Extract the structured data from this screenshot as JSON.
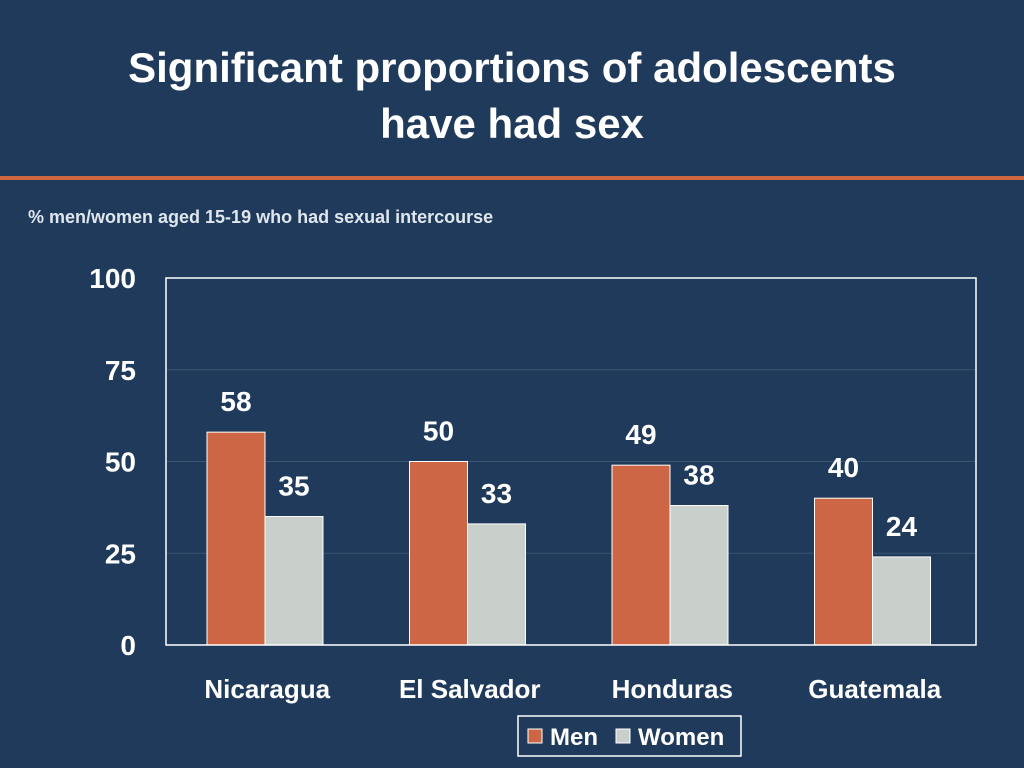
{
  "slide": {
    "title_line1": "Significant proportions of adolescents",
    "title_line2": "have had sex",
    "subtitle": "% men/women aged 15-19 who had sexual intercourse"
  },
  "colors": {
    "background": "#1f3a5a",
    "rule": "#d0673f",
    "men": "#cc6644",
    "women": "#c9cfcb",
    "gridline": "#3a5472",
    "plot_border": "#ffffff"
  },
  "chart_data": {
    "type": "bar",
    "title": "",
    "xlabel": "",
    "ylabel": "",
    "categories": [
      "Nicaragua",
      "El Salvador",
      "Honduras",
      "Guatemala"
    ],
    "series": [
      {
        "name": "Men",
        "values": [
          58,
          50,
          49,
          40
        ]
      },
      {
        "name": "Women",
        "values": [
          35,
          33,
          38,
          24
        ]
      }
    ],
    "ylim": [
      0,
      100
    ],
    "yticks": [
      0,
      25,
      50,
      75,
      100
    ],
    "grid": true,
    "legend": "bottom-center",
    "data_labels": true
  }
}
